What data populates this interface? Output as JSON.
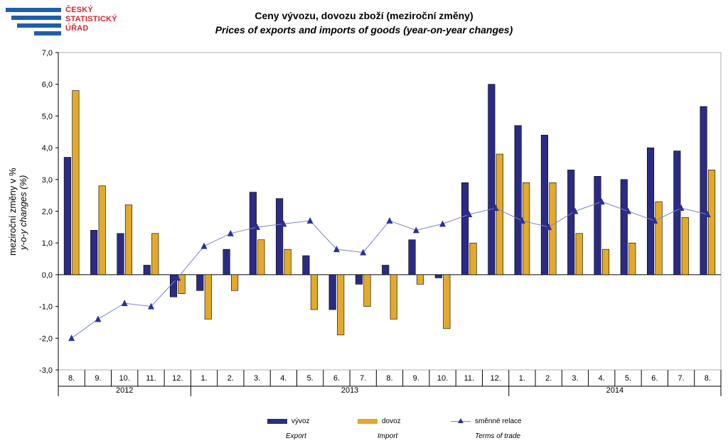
{
  "logo": {
    "line1": "ČESKÝ",
    "line2": "STATISTICKÝ",
    "line3": "ÚŘAD"
  },
  "chart_data": {
    "type": "bar",
    "title": "Ceny vývozu, dovozu zboží (meziroční změny)",
    "subtitle": "Prices of exports and imports of goods (year-on-year changes)",
    "ylabel": "meziroční změny v %",
    "ylabel_en": "y-o-y changes (%)",
    "ylim": [
      -3,
      7
    ],
    "yticks": [
      "-3,0",
      "-2,0",
      "-1,0",
      "0,0",
      "1,0",
      "2,0",
      "3,0",
      "4,0",
      "5,0",
      "6,0",
      "7,0"
    ],
    "categories": [
      "8.",
      "9.",
      "10.",
      "11.",
      "12.",
      "1.",
      "2.",
      "3.",
      "4.",
      "5.",
      "6.",
      "7.",
      "8.",
      "9.",
      "10.",
      "11.",
      "12.",
      "1.",
      "2.",
      "3.",
      "4.",
      "5.",
      "6.",
      "7.",
      "8."
    ],
    "years": [
      {
        "label": "2012",
        "start": 0,
        "end": 4
      },
      {
        "label": "2013",
        "start": 5,
        "end": 16
      },
      {
        "label": "2014",
        "start": 17,
        "end": 24
      }
    ],
    "series": [
      {
        "name": "vývoz",
        "name_en": "Export",
        "type": "bar",
        "color": "#2b2b86",
        "values": [
          3.7,
          1.4,
          1.3,
          0.3,
          -0.7,
          -0.5,
          0.8,
          2.6,
          2.4,
          0.6,
          -1.1,
          -0.3,
          0.3,
          1.1,
          -0.1,
          2.9,
          6.0,
          4.7,
          4.4,
          3.3,
          3.1,
          3.0,
          4.0,
          3.9,
          5.3
        ]
      },
      {
        "name": "dovoz",
        "name_en": "Import",
        "type": "bar",
        "color": "#e3a92a",
        "values": [
          5.8,
          2.8,
          2.2,
          1.3,
          -0.6,
          -1.4,
          -0.5,
          1.1,
          0.8,
          -1.1,
          -1.9,
          -1.0,
          -1.4,
          -0.3,
          -1.7,
          1.0,
          3.8,
          2.9,
          2.9,
          1.3,
          0.8,
          1.0,
          2.3,
          1.8,
          3.3
        ]
      },
      {
        "name": "směnné relace",
        "name_en": "Terms of trade",
        "type": "line",
        "color": "#7a84c8",
        "marker_color": "#2e3192",
        "values": [
          -2.0,
          -1.4,
          -0.9,
          -1.0,
          -0.1,
          0.9,
          1.3,
          1.5,
          1.6,
          1.7,
          0.8,
          0.7,
          1.7,
          1.4,
          1.6,
          1.9,
          2.1,
          1.7,
          1.5,
          2.0,
          2.3,
          2.0,
          1.7,
          2.1,
          1.9
        ]
      }
    ],
    "grid": false,
    "legend_position": "bottom"
  }
}
